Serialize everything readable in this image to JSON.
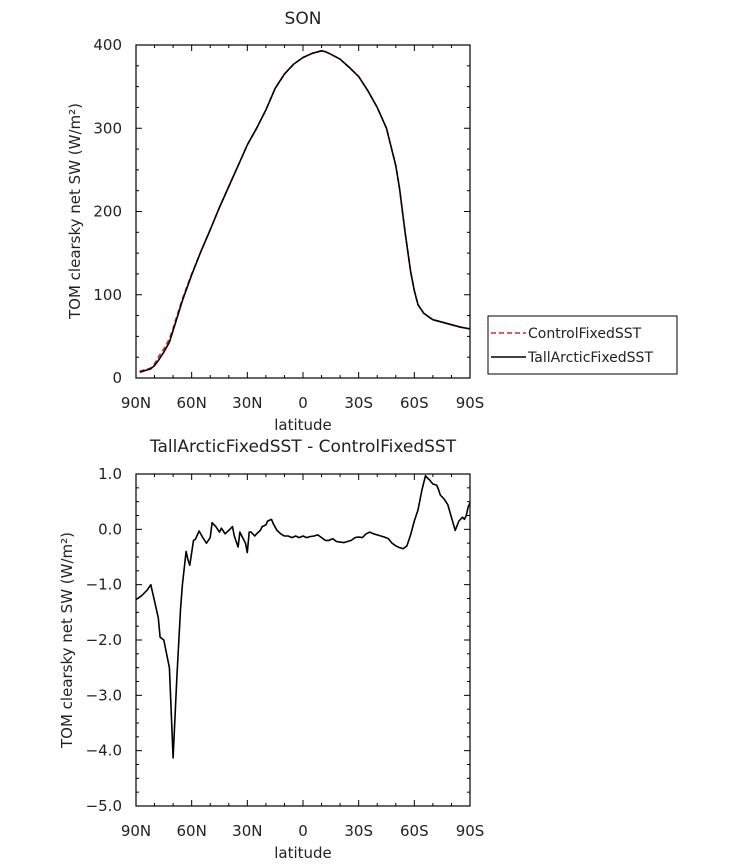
{
  "chart_data": [
    {
      "type": "line",
      "title": "SON",
      "xlabel": "latitude",
      "ylabel": "TOM clearsky net SW (W/m²)",
      "xlim": [
        90,
        -90
      ],
      "ylim": [
        0,
        400
      ],
      "xticks": [
        90,
        60,
        30,
        0,
        -30,
        -60,
        -90
      ],
      "xtick_labels": [
        "90N",
        "60N",
        "30N",
        "0",
        "30S",
        "60S",
        "90S"
      ],
      "yticks": [
        0,
        100,
        200,
        300,
        400
      ],
      "ytick_labels": [
        "0",
        "100",
        "200",
        "300",
        "400"
      ],
      "legend_position": "right",
      "series": [
        {
          "name": "ControlFixedSST",
          "color": "#d62728",
          "dash": "dashed",
          "x": [
            88,
            85,
            82,
            80,
            78,
            75,
            72,
            70,
            65,
            60,
            55,
            50,
            45,
            40,
            35,
            30,
            25,
            20,
            15,
            10,
            5,
            0,
            -5,
            -10,
            -12,
            -15,
            -20,
            -25,
            -30,
            -35,
            -40,
            -45,
            -50,
            -52,
            -55,
            -58,
            -60,
            -62,
            -65,
            -68,
            -70,
            -75,
            -80,
            -85,
            -90
          ],
          "y": [
            8,
            10,
            12,
            17,
            25,
            35,
            47,
            60,
            95,
            125,
            152,
            178,
            205,
            230,
            255,
            280,
            300,
            322,
            348,
            365,
            377,
            385,
            390,
            393,
            392,
            389,
            383,
            373,
            362,
            345,
            325,
            300,
            255,
            228,
            175,
            128,
            105,
            88,
            78,
            73,
            70,
            67,
            64,
            61,
            59
          ]
        },
        {
          "name": "TallArcticFixedSST",
          "color": "#000000",
          "dash": "solid",
          "x": [
            88,
            85,
            82,
            80,
            78,
            75,
            72,
            70,
            65,
            60,
            55,
            50,
            45,
            40,
            35,
            30,
            25,
            20,
            15,
            10,
            5,
            0,
            -5,
            -10,
            -12,
            -15,
            -20,
            -25,
            -30,
            -35,
            -40,
            -45,
            -50,
            -52,
            -55,
            -58,
            -60,
            -62,
            -65,
            -68,
            -70,
            -75,
            -80,
            -85,
            -90
          ],
          "y": [
            7,
            9,
            11,
            15,
            21,
            31,
            43,
            57,
            93,
            124,
            152,
            178,
            205,
            230,
            255,
            280,
            300,
            322,
            348,
            365,
            377,
            385,
            390,
            393,
            392,
            389,
            383,
            373,
            362,
            345,
            325,
            300,
            255,
            228,
            175,
            128,
            105,
            88,
            78,
            73,
            70,
            67,
            64,
            61,
            59
          ]
        }
      ]
    },
    {
      "type": "line",
      "title": "TallArcticFixedSST - ControlFixedSST",
      "xlabel": "latitude",
      "ylabel": "TOM clearsky net SW (W/m²)",
      "xlim": [
        90,
        -90
      ],
      "ylim": [
        -5,
        1
      ],
      "xticks": [
        90,
        60,
        30,
        0,
        -30,
        -60,
        -90
      ],
      "xtick_labels": [
        "90N",
        "60N",
        "30N",
        "0",
        "30S",
        "60S",
        "90S"
      ],
      "yticks": [
        1,
        0,
        -1,
        -2,
        -3,
        -4,
        -5
      ],
      "ytick_labels": [
        "1.0",
        "0.0",
        "−1.0",
        "−2.0",
        "−3.0",
        "−4.0",
        "−5.0"
      ],
      "series": [
        {
          "color": "#000000",
          "x": [
            90,
            87,
            84,
            82,
            80,
            78,
            77,
            75,
            72,
            70,
            68,
            66,
            65,
            63,
            62,
            61,
            59,
            58,
            56,
            54,
            52,
            50,
            49,
            47,
            45,
            44,
            42,
            40,
            38,
            37,
            35,
            34,
            33,
            31,
            30,
            29,
            28,
            26,
            25,
            23,
            22,
            20,
            19,
            17,
            16,
            14,
            12,
            10,
            8,
            6,
            4,
            2,
            0,
            -2,
            -4,
            -6,
            -8,
            -10,
            -12,
            -14,
            -16,
            -18,
            -20,
            -22,
            -24,
            -26,
            -28,
            -30,
            -32,
            -34,
            -36,
            -38,
            -40,
            -42,
            -44,
            -46,
            -48,
            -50,
            -52,
            -54,
            -56,
            -58,
            -60,
            -62,
            -64,
            -66,
            -67,
            -68,
            -70,
            -72,
            -73,
            -74,
            -76,
            -78,
            -80,
            -82,
            -84,
            -86,
            -87,
            -88,
            -89,
            -90
          ],
          "y": [
            -1.27,
            -1.2,
            -1.1,
            -1.0,
            -1.3,
            -1.6,
            -1.95,
            -2.0,
            -2.5,
            -4.13,
            -2.7,
            -1.45,
            -1.0,
            -0.4,
            -0.55,
            -0.65,
            -0.2,
            -0.18,
            -0.03,
            -0.15,
            -0.25,
            -0.15,
            0.12,
            0.05,
            -0.05,
            0.02,
            -0.08,
            -0.02,
            0.05,
            -0.12,
            -0.32,
            -0.05,
            -0.12,
            -0.25,
            -0.42,
            -0.05,
            -0.05,
            -0.12,
            -0.08,
            -0.02,
            0.05,
            0.08,
            0.15,
            0.18,
            0.1,
            -0.02,
            -0.08,
            -0.12,
            -0.12,
            -0.15,
            -0.12,
            -0.15,
            -0.12,
            -0.15,
            -0.13,
            -0.12,
            -0.1,
            -0.15,
            -0.2,
            -0.2,
            -0.17,
            -0.22,
            -0.23,
            -0.24,
            -0.22,
            -0.2,
            -0.15,
            -0.14,
            -0.15,
            -0.08,
            -0.05,
            -0.08,
            -0.1,
            -0.12,
            -0.14,
            -0.17,
            -0.25,
            -0.3,
            -0.33,
            -0.35,
            -0.3,
            -0.1,
            0.15,
            0.35,
            0.7,
            0.97,
            0.93,
            0.9,
            0.82,
            0.8,
            0.72,
            0.62,
            0.55,
            0.45,
            0.22,
            -0.02,
            0.15,
            0.22,
            0.18,
            0.25,
            0.4,
            0.48
          ]
        }
      ]
    }
  ]
}
